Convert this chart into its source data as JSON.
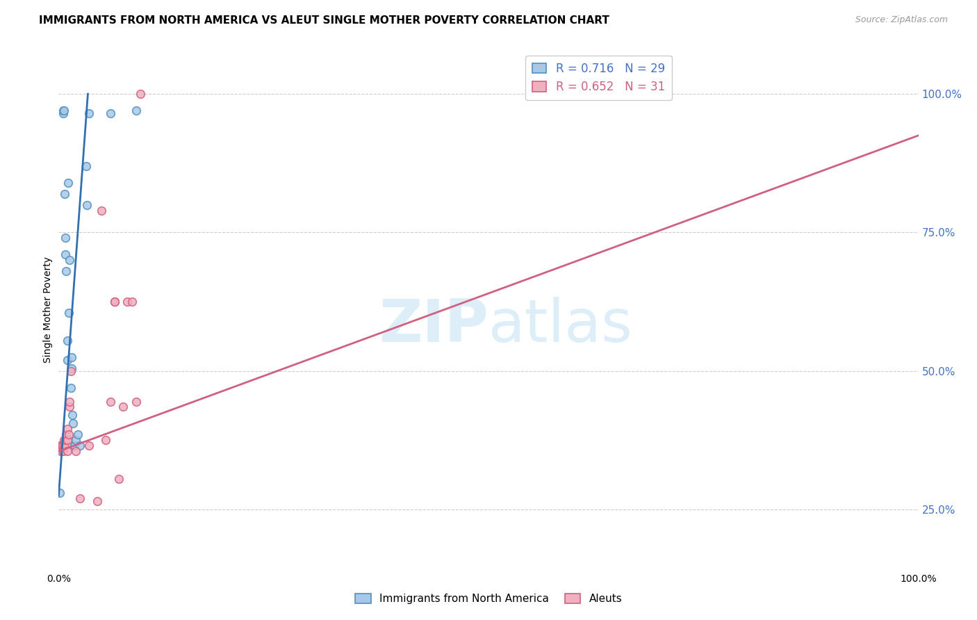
{
  "title": "IMMIGRANTS FROM NORTH AMERICA VS ALEUT SINGLE MOTHER POVERTY CORRELATION CHART",
  "source": "Source: ZipAtlas.com",
  "ylabel": "Single Mother Poverty",
  "legend_label1": "Immigrants from North America",
  "legend_label2": "Aleuts",
  "r1": 0.716,
  "n1": 29,
  "r2": 0.652,
  "n2": 31,
  "right_yticks": [
    "25.0%",
    "50.0%",
    "75.0%",
    "100.0%"
  ],
  "right_ytick_vals": [
    0.25,
    0.5,
    0.75,
    1.0
  ],
  "blue_scatter_color": "#a8c8e8",
  "blue_edge_color": "#5090c0",
  "pink_scatter_color": "#f0b0c0",
  "pink_edge_color": "#d06080",
  "blue_line_color": "#3070b0",
  "pink_line_color": "#d06080",
  "watermark_color": "#ddeef8",
  "grid_color": "#cccccc",
  "right_tick_color": "#4472c4",
  "background_color": "#ffffff",
  "title_fontsize": 11,
  "axis_fontsize": 10,
  "legend_fontsize": 12,
  "marker_size": 70,
  "marker_linewidth": 1.2,
  "blue_scatter_x": [
    0.001,
    0.003,
    0.005,
    0.005,
    0.006,
    0.007,
    0.008,
    0.008,
    0.009,
    0.01,
    0.01,
    0.011,
    0.012,
    0.013,
    0.014,
    0.015,
    0.015,
    0.016,
    0.017,
    0.018,
    0.018,
    0.02,
    0.022,
    0.025,
    0.032,
    0.033,
    0.035,
    0.06,
    0.09
  ],
  "blue_scatter_y": [
    0.28,
    0.355,
    0.965,
    0.97,
    0.97,
    0.82,
    0.71,
    0.74,
    0.68,
    0.555,
    0.52,
    0.84,
    0.605,
    0.7,
    0.47,
    0.505,
    0.525,
    0.42,
    0.405,
    0.365,
    0.365,
    0.375,
    0.385,
    0.365,
    0.87,
    0.8,
    0.965,
    0.965,
    0.97
  ],
  "pink_scatter_x": [
    0.001,
    0.003,
    0.004,
    0.005,
    0.005,
    0.006,
    0.007,
    0.008,
    0.009,
    0.01,
    0.01,
    0.01,
    0.012,
    0.013,
    0.013,
    0.014,
    0.02,
    0.025,
    0.035,
    0.045,
    0.05,
    0.055,
    0.06,
    0.065,
    0.065,
    0.07,
    0.075,
    0.08,
    0.085,
    0.09,
    0.095
  ],
  "pink_scatter_y": [
    0.365,
    0.355,
    0.365,
    0.365,
    0.355,
    0.375,
    0.365,
    0.375,
    0.385,
    0.395,
    0.375,
    0.355,
    0.385,
    0.435,
    0.445,
    0.5,
    0.355,
    0.27,
    0.365,
    0.265,
    0.79,
    0.375,
    0.445,
    0.625,
    0.625,
    0.305,
    0.435,
    0.625,
    0.625,
    0.445,
    1.0
  ],
  "blue_line_x": [
    0.0,
    0.034
  ],
  "blue_line_y": [
    0.275,
    1.0
  ],
  "pink_line_x": [
    0.0,
    1.0
  ],
  "pink_line_y": [
    0.355,
    0.925
  ],
  "xlim": [
    0.0,
    1.0
  ],
  "ylim": [
    0.14,
    1.08
  ]
}
